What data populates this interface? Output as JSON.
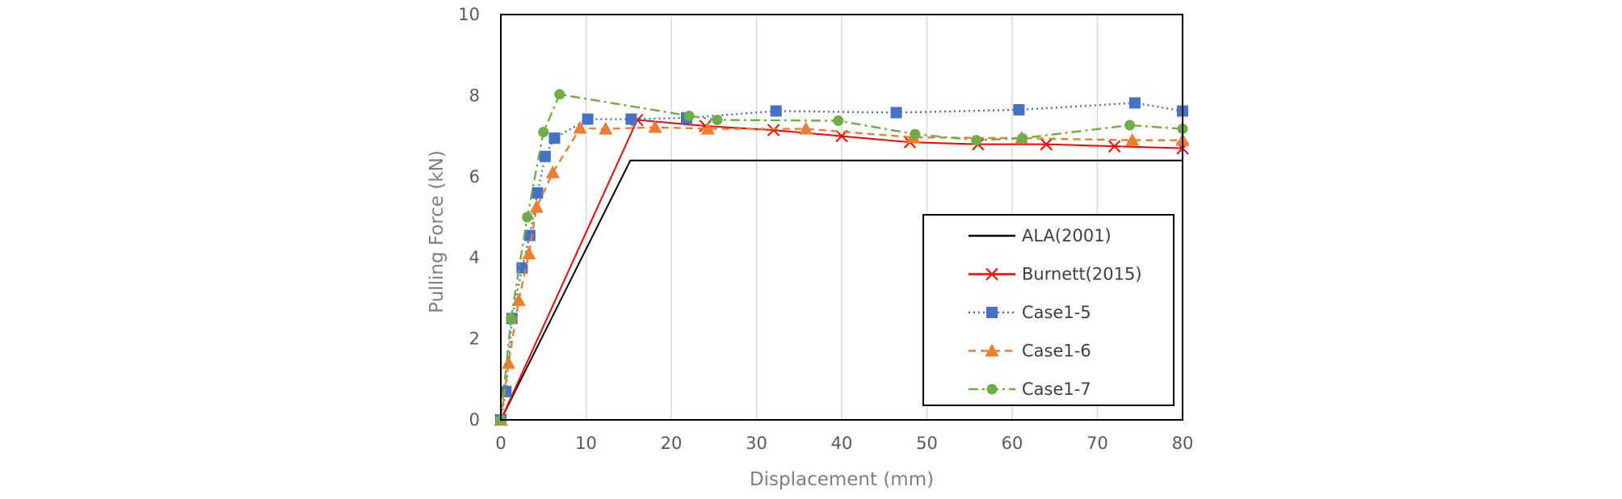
{
  "chart_data": {
    "type": "line",
    "title": "",
    "xlabel": "Displacement (mm)",
    "ylabel": "Pulling Force (kN)",
    "xlim": [
      0,
      80
    ],
    "ylim": [
      0,
      10
    ],
    "x_ticks": [
      "0",
      "10",
      "20",
      "30",
      "40",
      "50",
      "60",
      "70",
      "80"
    ],
    "y_ticks": [
      "0",
      "2",
      "4",
      "6",
      "8",
      "10"
    ],
    "grid": "vertical",
    "legend_position": "bottom-right",
    "series": [
      {
        "name": "ALA(2001)",
        "color": "#000000",
        "line_style": "solid",
        "marker": "none",
        "x": [
          0,
          15.2,
          80
        ],
        "y": [
          0,
          6.4,
          6.4
        ]
      },
      {
        "name": "Burnett(2015)",
        "color": "#ff0000",
        "line_style": "solid",
        "marker": "x",
        "x": [
          0,
          16,
          24,
          32,
          40,
          48,
          56,
          64,
          72,
          80
        ],
        "y": [
          0,
          7.4,
          7.25,
          7.15,
          7.0,
          6.85,
          6.8,
          6.8,
          6.75,
          6.7
        ]
      },
      {
        "name": "Case1-5",
        "color": "#4472c4",
        "line_style": "dotted",
        "marker": "square",
        "x": [
          0,
          0.6,
          1.3,
          2.5,
          3.4,
          4.3,
          5.2,
          6.3,
          10.2,
          15.3,
          21.8,
          32.3,
          46.4,
          60.8,
          74.4,
          80
        ],
        "y": [
          0,
          0.7,
          2.5,
          3.75,
          4.55,
          5.6,
          6.5,
          6.95,
          7.42,
          7.42,
          7.45,
          7.62,
          7.58,
          7.65,
          7.82,
          7.62
        ]
      },
      {
        "name": "Case1-6",
        "color": "#ed7d31",
        "line_style": "dashed",
        "marker": "triangle",
        "x": [
          0,
          0.9,
          2.1,
          3.3,
          4.2,
          6.1,
          9.3,
          12.3,
          18.1,
          24.3,
          35.8,
          48.4,
          61.1,
          74.1,
          80
        ],
        "y": [
          0,
          1.4,
          2.95,
          4.1,
          5.25,
          6.1,
          7.2,
          7.18,
          7.22,
          7.18,
          7.18,
          6.97,
          6.95,
          6.9,
          6.9
        ]
      },
      {
        "name": "Case1-7",
        "color": "#70ad47",
        "line_style": "dashdot",
        "marker": "circle",
        "x": [
          0,
          1.2,
          3.1,
          5.0,
          6.9,
          22.1,
          25.4,
          39.6,
          48.6,
          55.8,
          61.2,
          73.8,
          80
        ],
        "y": [
          0,
          2.5,
          5.0,
          7.1,
          8.03,
          7.5,
          7.4,
          7.38,
          7.05,
          6.9,
          6.95,
          7.27,
          7.18
        ]
      }
    ]
  }
}
